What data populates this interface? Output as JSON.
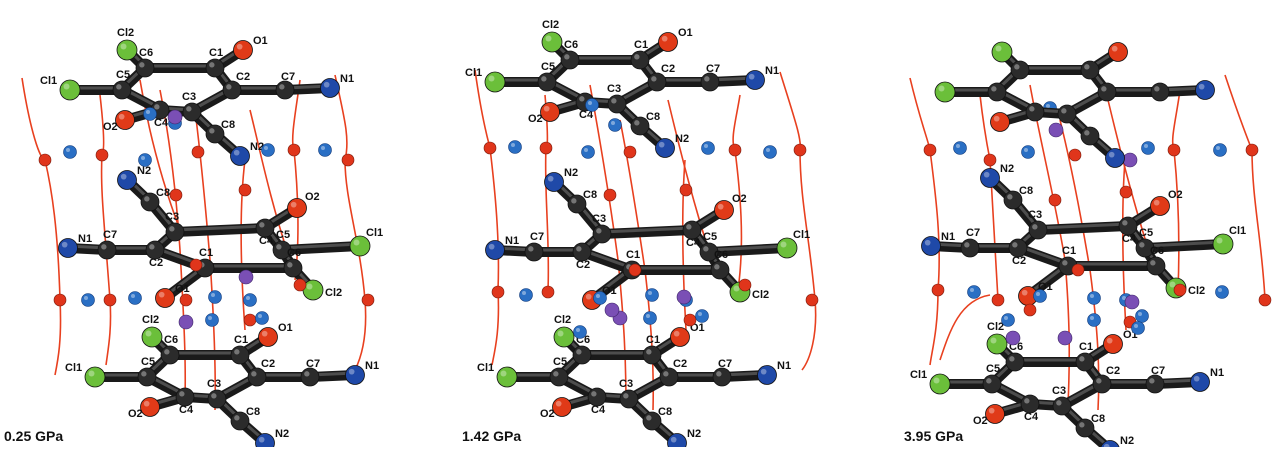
{
  "colors": {
    "carbon": "#2b2b2b",
    "oxygen": "#e03a18",
    "nitrogen": "#1f49a8",
    "chlorine": "#6bbf3a",
    "water_o": "#e0351b",
    "bond": "#e8401f",
    "ion_blue": "#2a6fc4",
    "ion_purple": "#7a4fb5"
  },
  "panels": [
    {
      "id": "p1",
      "pressure": "0.25 GPa",
      "top": [
        "Cl2",
        "C6",
        "C1",
        "O1",
        "Cl1",
        "C5",
        "C2",
        "C7",
        "N1",
        "C3",
        "O2",
        "C4",
        "C8",
        "N2"
      ],
      "middle": [
        "N2",
        "C8",
        "C4",
        "O2",
        "C7",
        "Cl1",
        "N1",
        "C3",
        "C2",
        "C5",
        "C1",
        "C6",
        "O1",
        "Cl2"
      ],
      "bottom": [
        "Cl2",
        "C6",
        "C1",
        "O1",
        "C2",
        "C7",
        "N1",
        "C5",
        "Cl1",
        "O2",
        "C4",
        "C3",
        "C8",
        "N2"
      ]
    },
    {
      "id": "p2",
      "pressure": "1.42 GPa",
      "top": [
        "Cl2",
        "C6",
        "C1",
        "O1",
        "Cl1",
        "C5",
        "C2",
        "C7",
        "N1",
        "C4",
        "C3",
        "O2",
        "C8",
        "N2"
      ],
      "middle": [
        "N2",
        "C8",
        "C3",
        "O2",
        "N1",
        "C2",
        "C4",
        "C5",
        "Cl1",
        "C7",
        "O1",
        "C1",
        "C6",
        "Cl2"
      ],
      "bottom": [
        "Cl2",
        "C6",
        "C1",
        "O1",
        "C5",
        "C2",
        "C7",
        "N1",
        "Cl1",
        "O2",
        "C4",
        "C3",
        "C8",
        "N2"
      ]
    },
    {
      "id": "p3",
      "pressure": "3.95 GPa",
      "top": [],
      "middle": [
        "N2",
        "C8",
        "C3",
        "C4",
        "O2",
        "C7",
        "C2",
        "N1",
        "C1",
        "C5",
        "Cl1",
        "O1",
        "C6",
        "Cl2"
      ],
      "bottom": [
        "Cl2",
        "C6",
        "C1",
        "O1",
        "Cl1",
        "C5",
        "C7",
        "N1",
        "C2",
        "O2",
        "C4",
        "C3",
        "C8",
        "N2"
      ]
    }
  ]
}
